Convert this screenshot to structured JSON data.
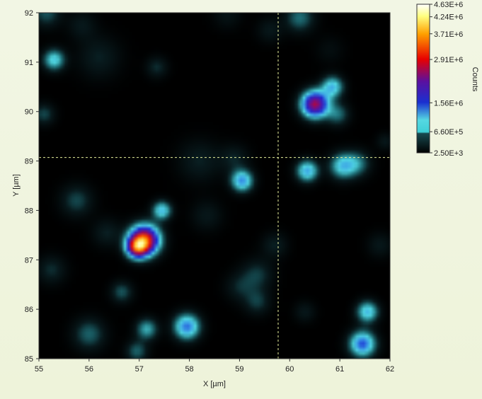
{
  "chart_data": {
    "type": "heatmap",
    "xlabel": "X [µm]",
    "ylabel": "Y [µm]",
    "xlim": [
      55,
      62
    ],
    "ylim": [
      85,
      92
    ],
    "xticks": [
      "55",
      "56",
      "57",
      "58",
      "59",
      "60",
      "61",
      "62"
    ],
    "yticks": [
      "85",
      "86",
      "87",
      "88",
      "89",
      "90",
      "91",
      "92"
    ],
    "colorbar": {
      "label": "Counts",
      "min": 2500,
      "max": 4630000,
      "ticks": [
        "4.63E+6",
        "4.24E+6",
        "3.71E+6",
        "2.91E+6",
        "1.56E+6",
        "6.60E+5",
        "2.50E+3"
      ],
      "tick_values": [
        4630000,
        4240000,
        3710000,
        2910000,
        1560000,
        660000,
        2500
      ]
    },
    "cursor": {
      "x": 59.77,
      "y": 89.07
    },
    "spots": [
      {
        "x": 55.3,
        "y": 91.05,
        "amp": 1000000,
        "w": 0.15
      },
      {
        "x": 55.15,
        "y": 92.0,
        "amp": 500000,
        "w": 0.2
      },
      {
        "x": 55.1,
        "y": 89.95,
        "amp": 450000,
        "w": 0.15
      },
      {
        "x": 56.2,
        "y": 91.1,
        "amp": 300000,
        "w": 0.3
      },
      {
        "x": 55.85,
        "y": 91.75,
        "amp": 250000,
        "w": 0.2
      },
      {
        "x": 57.35,
        "y": 90.9,
        "amp": 350000,
        "w": 0.15
      },
      {
        "x": 59.6,
        "y": 91.65,
        "amp": 250000,
        "w": 0.18
      },
      {
        "x": 60.2,
        "y": 91.9,
        "amp": 600000,
        "w": 0.2
      },
      {
        "x": 60.5,
        "y": 90.15,
        "amp": 2600000,
        "w": 0.18
      },
      {
        "x": 60.85,
        "y": 90.5,
        "amp": 1100000,
        "w": 0.15
      },
      {
        "x": 60.95,
        "y": 89.95,
        "amp": 600000,
        "w": 0.16
      },
      {
        "x": 61.05,
        "y": 88.9,
        "amp": 1000000,
        "w": 0.18
      },
      {
        "x": 61.35,
        "y": 88.95,
        "amp": 600000,
        "w": 0.18
      },
      {
        "x": 60.35,
        "y": 88.8,
        "amp": 1200000,
        "w": 0.15
      },
      {
        "x": 59.05,
        "y": 88.6,
        "amp": 1300000,
        "w": 0.15
      },
      {
        "x": 57.1,
        "y": 87.4,
        "amp": 3300000,
        "w": 0.2
      },
      {
        "x": 56.95,
        "y": 87.25,
        "amp": 2200000,
        "w": 0.14
      },
      {
        "x": 57.45,
        "y": 88.0,
        "amp": 1100000,
        "w": 0.13
      },
      {
        "x": 55.75,
        "y": 88.2,
        "amp": 450000,
        "w": 0.22
      },
      {
        "x": 56.35,
        "y": 87.55,
        "amp": 300000,
        "w": 0.2
      },
      {
        "x": 55.25,
        "y": 86.8,
        "amp": 350000,
        "w": 0.2
      },
      {
        "x": 56.65,
        "y": 86.35,
        "amp": 500000,
        "w": 0.15
      },
      {
        "x": 56.0,
        "y": 85.5,
        "amp": 550000,
        "w": 0.22
      },
      {
        "x": 57.15,
        "y": 85.6,
        "amp": 800000,
        "w": 0.15
      },
      {
        "x": 57.95,
        "y": 85.65,
        "amp": 1400000,
        "w": 0.18
      },
      {
        "x": 56.95,
        "y": 85.15,
        "amp": 550000,
        "w": 0.15
      },
      {
        "x": 58.35,
        "y": 87.9,
        "amp": 250000,
        "w": 0.22
      },
      {
        "x": 59.35,
        "y": 86.7,
        "amp": 400000,
        "w": 0.22
      },
      {
        "x": 59.35,
        "y": 86.15,
        "amp": 400000,
        "w": 0.18
      },
      {
        "x": 59.0,
        "y": 86.45,
        "amp": 300000,
        "w": 0.2
      },
      {
        "x": 59.7,
        "y": 87.3,
        "amp": 300000,
        "w": 0.18
      },
      {
        "x": 60.3,
        "y": 85.95,
        "amp": 250000,
        "w": 0.15
      },
      {
        "x": 61.55,
        "y": 85.95,
        "amp": 1100000,
        "w": 0.15
      },
      {
        "x": 61.45,
        "y": 85.3,
        "amp": 1500000,
        "w": 0.18
      },
      {
        "x": 61.8,
        "y": 87.3,
        "amp": 250000,
        "w": 0.18
      },
      {
        "x": 61.9,
        "y": 89.4,
        "amp": 250000,
        "w": 0.12
      },
      {
        "x": 58.2,
        "y": 89.0,
        "amp": 300000,
        "w": 0.3
      },
      {
        "x": 58.9,
        "y": 89.05,
        "amp": 300000,
        "w": 0.2
      },
      {
        "x": 58.75,
        "y": 91.95,
        "amp": 200000,
        "w": 0.2
      },
      {
        "x": 60.8,
        "y": 91.25,
        "amp": 150000,
        "w": 0.2
      }
    ]
  }
}
